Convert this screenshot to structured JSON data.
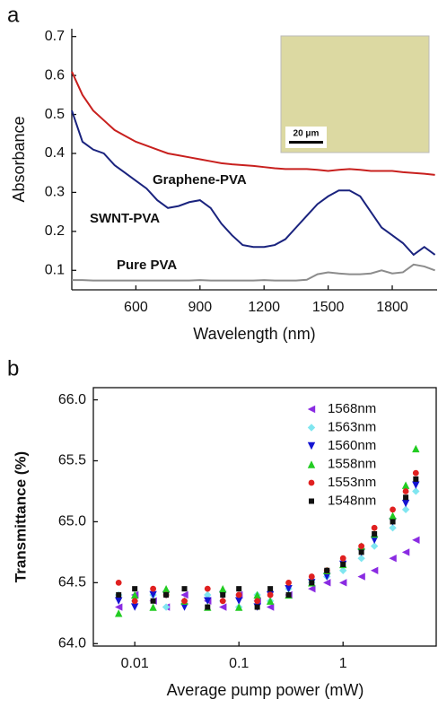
{
  "chart_data": [
    {
      "type": "line",
      "panel_label": "a",
      "x_label": "Wavelength (nm)",
      "y_label": "Absorbance",
      "x": [
        300,
        350,
        400,
        450,
        500,
        550,
        600,
        650,
        700,
        750,
        800,
        850,
        900,
        950,
        1000,
        1050,
        1100,
        1150,
        1200,
        1250,
        1300,
        1350,
        1400,
        1450,
        1500,
        1550,
        1600,
        1650,
        1700,
        1750,
        1800,
        1850,
        1900,
        1950,
        2000
      ],
      "series": [
        {
          "name": "Graphene-PVA",
          "color": "#c8201e",
          "values": [
            0.61,
            0.55,
            0.51,
            0.485,
            0.46,
            0.445,
            0.43,
            0.42,
            0.41,
            0.4,
            0.395,
            0.39,
            0.385,
            0.38,
            0.375,
            0.372,
            0.37,
            0.368,
            0.365,
            0.362,
            0.36,
            0.36,
            0.36,
            0.358,
            0.355,
            0.358,
            0.36,
            0.358,
            0.355,
            0.355,
            0.355,
            0.352,
            0.35,
            0.348,
            0.345
          ]
        },
        {
          "name": "SWNT-PVA",
          "color": "#1a237e",
          "values": [
            0.51,
            0.43,
            0.41,
            0.4,
            0.37,
            0.35,
            0.33,
            0.31,
            0.28,
            0.26,
            0.265,
            0.275,
            0.28,
            0.26,
            0.22,
            0.19,
            0.165,
            0.16,
            0.16,
            0.165,
            0.18,
            0.21,
            0.24,
            0.27,
            0.29,
            0.305,
            0.305,
            0.29,
            0.25,
            0.21,
            0.19,
            0.17,
            0.14,
            0.16,
            0.14
          ]
        },
        {
          "name": "Pure PVA",
          "color": "#8c8c8c",
          "values": [
            0.075,
            0.075,
            0.074,
            0.074,
            0.074,
            0.074,
            0.074,
            0.074,
            0.074,
            0.074,
            0.074,
            0.074,
            0.075,
            0.074,
            0.074,
            0.074,
            0.074,
            0.074,
            0.075,
            0.074,
            0.074,
            0.074,
            0.076,
            0.09,
            0.095,
            0.092,
            0.09,
            0.09,
            0.092,
            0.1,
            0.092,
            0.095,
            0.115,
            0.11,
            0.1
          ]
        }
      ],
      "xlim": [
        300,
        2010
      ],
      "xticks": [
        600,
        900,
        1200,
        1500,
        1800
      ],
      "ylim": [
        0.05,
        0.72
      ],
      "yticks": [
        0.1,
        0.2,
        0.3,
        0.4,
        0.5,
        0.6,
        0.7
      ],
      "inset_scale_label": "20 μm"
    },
    {
      "type": "scatter",
      "panel_label": "b",
      "x_label": "Average pump power (mW)",
      "y_label": "Transmittance (%)",
      "x": [
        0.007,
        0.01,
        0.015,
        0.02,
        0.03,
        0.05,
        0.07,
        0.1,
        0.15,
        0.2,
        0.3,
        0.5,
        0.7,
        1,
        1.5,
        2,
        3,
        4,
        5
      ],
      "log_x": true,
      "legend": "upper right",
      "series": [
        {
          "name": "1568nm",
          "color": "#8a2be2",
          "marker": "triangle-left",
          "values": [
            64.3,
            64.4,
            64.35,
            64.3,
            64.4,
            64.35,
            64.3,
            64.4,
            64.35,
            64.3,
            64.4,
            64.45,
            64.5,
            64.5,
            64.55,
            64.6,
            64.7,
            64.75,
            64.85
          ]
        },
        {
          "name": "1563nm",
          "color": "#80e6f0",
          "marker": "diamond",
          "values": [
            64.4,
            64.35,
            64.4,
            64.3,
            64.35,
            64.4,
            64.35,
            64.3,
            64.4,
            64.35,
            64.45,
            64.5,
            64.55,
            64.6,
            64.7,
            64.8,
            64.95,
            65.1,
            65.25
          ]
        },
        {
          "name": "1560nm",
          "color": "#1414d2",
          "marker": "triangle-down",
          "values": [
            64.35,
            64.3,
            64.4,
            64.4,
            64.3,
            64.35,
            64.4,
            64.35,
            64.3,
            64.4,
            64.45,
            64.5,
            64.55,
            64.65,
            64.75,
            64.85,
            65.0,
            65.15,
            65.3
          ]
        },
        {
          "name": "1558nm",
          "color": "#22cc22",
          "marker": "triangle-up",
          "values": [
            64.25,
            64.4,
            64.3,
            64.45,
            64.35,
            64.3,
            64.45,
            64.3,
            64.4,
            64.35,
            64.4,
            64.5,
            64.6,
            64.65,
            64.8,
            64.9,
            65.05,
            65.3,
            65.6
          ]
        },
        {
          "name": "1553nm",
          "color": "#e02020",
          "marker": "circle",
          "values": [
            64.5,
            64.35,
            64.45,
            64.4,
            64.35,
            64.45,
            64.35,
            64.4,
            64.35,
            64.4,
            64.5,
            64.55,
            64.6,
            64.7,
            64.8,
            64.95,
            65.1,
            65.25,
            65.4
          ]
        },
        {
          "name": "1548nm",
          "color": "#111111",
          "marker": "square",
          "values": [
            64.4,
            64.45,
            64.35,
            64.4,
            64.45,
            64.3,
            64.4,
            64.45,
            64.3,
            64.45,
            64.4,
            64.5,
            64.6,
            64.65,
            64.75,
            64.9,
            65.0,
            65.2,
            65.35
          ]
        }
      ],
      "xlim": [
        0.004,
        8
      ],
      "xticks": [
        0.01,
        0.1,
        1
      ],
      "ylim": [
        63.98,
        66.1
      ],
      "yticks": [
        {
          "value": 64,
          "label": "64.0"
        },
        64.5,
        {
          "value": 65,
          "label": "65.0"
        },
        65.5,
        {
          "value": 66,
          "label": "66.0"
        }
      ]
    }
  ]
}
